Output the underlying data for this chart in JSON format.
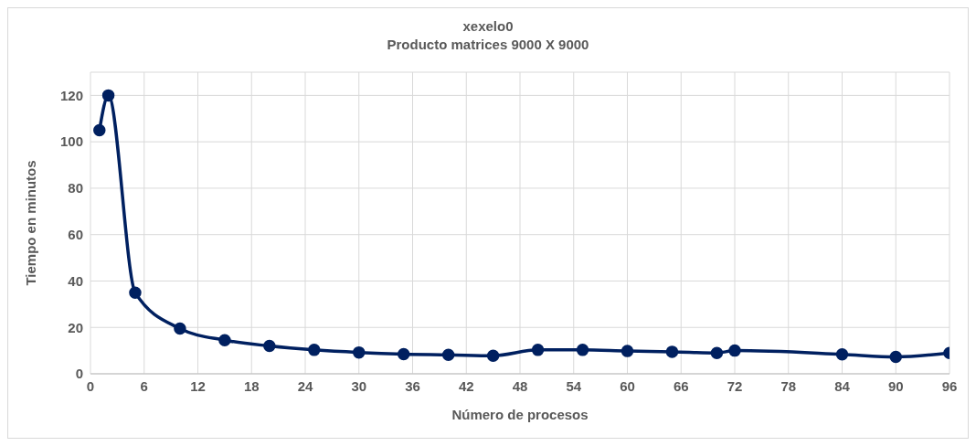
{
  "chart_data": {
    "type": "line",
    "title": "xexelo0",
    "subtitle": "Producto matrices 9000 X 9000",
    "xlabel": "Número de procesos",
    "ylabel": "Tiempo en minutos",
    "x": [
      1,
      2,
      5,
      10,
      15,
      20,
      25,
      30,
      35,
      40,
      45,
      50,
      55,
      60,
      65,
      70,
      72,
      84,
      90,
      96
    ],
    "series": [
      {
        "color": "#002060",
        "values": [
          105,
          120,
          35,
          19.5,
          14.5,
          12,
          10.3,
          9.2,
          8.5,
          8.2,
          7.8,
          10.3,
          10.3,
          9.8,
          9.5,
          9,
          10,
          8.4,
          7.3,
          9
        ]
      }
    ],
    "xlim": [
      0,
      96
    ],
    "xticks": [
      0,
      6,
      12,
      18,
      24,
      30,
      36,
      42,
      48,
      54,
      60,
      66,
      72,
      78,
      84,
      90,
      96
    ],
    "ylim": [
      0,
      130
    ],
    "yticks": [
      0,
      20,
      40,
      60,
      80,
      100,
      120
    ],
    "grid": true,
    "marker": "circle",
    "line_style": "solid",
    "legend": false
  }
}
